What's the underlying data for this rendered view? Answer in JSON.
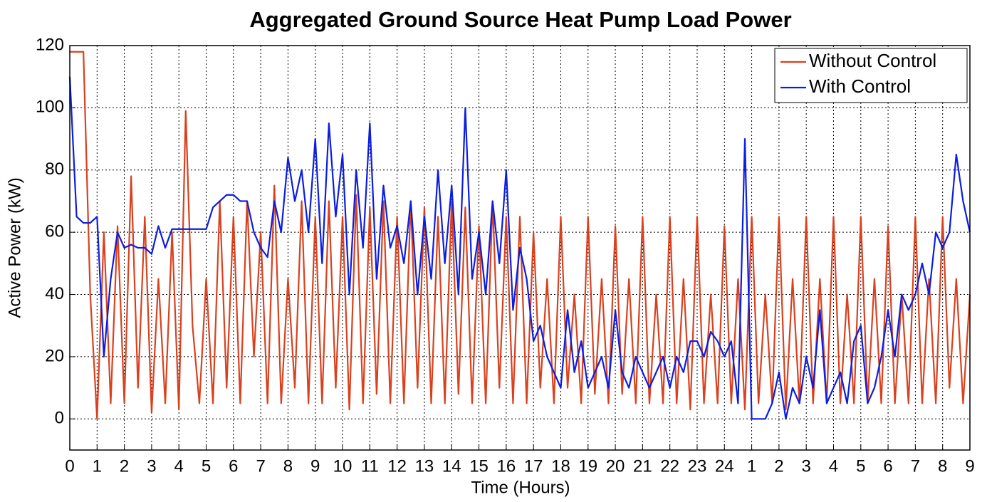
{
  "chart_data": {
    "type": "line",
    "title": "Aggregated Ground Source Heat Pump Load Power",
    "xlabel": "Time (Hours)",
    "ylabel": "Active Power (kW)",
    "xlim": [
      0,
      33
    ],
    "ylim": [
      -10,
      120
    ],
    "xticks": [
      0,
      1,
      2,
      3,
      4,
      5,
      6,
      7,
      8,
      9,
      10,
      11,
      12,
      13,
      14,
      15,
      16,
      17,
      18,
      19,
      20,
      21,
      22,
      23,
      24,
      {
        "value": 25,
        "label": "1"
      },
      {
        "value": 26,
        "label": "2"
      },
      {
        "value": 27,
        "label": "3"
      },
      {
        "value": 28,
        "label": "4"
      },
      {
        "value": 29,
        "label": "5"
      },
      {
        "value": 30,
        "label": "6"
      },
      {
        "value": 31,
        "label": "7"
      },
      {
        "value": 32,
        "label": "8"
      },
      {
        "value": 33,
        "label": "9"
      }
    ],
    "yticks": [
      0,
      20,
      40,
      60,
      80,
      100,
      120
    ],
    "grid": true,
    "legend": "upper right",
    "x": [
      0,
      0.25,
      0.5,
      0.75,
      1,
      1.25,
      1.5,
      1.75,
      2,
      2.25,
      2.5,
      2.75,
      3,
      3.25,
      3.5,
      3.75,
      4,
      4.25,
      4.5,
      4.75,
      5,
      5.25,
      5.5,
      5.75,
      6,
      6.25,
      6.5,
      6.75,
      7,
      7.25,
      7.5,
      7.75,
      8,
      8.25,
      8.5,
      8.75,
      9,
      9.25,
      9.5,
      9.75,
      10,
      10.25,
      10.5,
      10.75,
      11,
      11.25,
      11.5,
      11.75,
      12,
      12.25,
      12.5,
      12.75,
      13,
      13.25,
      13.5,
      13.75,
      14,
      14.25,
      14.5,
      14.75,
      15,
      15.25,
      15.5,
      15.75,
      16,
      16.25,
      16.5,
      16.75,
      17,
      17.25,
      17.5,
      17.75,
      18,
      18.25,
      18.5,
      18.75,
      19,
      19.25,
      19.5,
      19.75,
      20,
      20.25,
      20.5,
      20.75,
      21,
      21.25,
      21.5,
      21.75,
      22,
      22.25,
      22.5,
      22.75,
      23,
      23.25,
      23.5,
      23.75,
      24,
      24.25,
      24.5,
      24.75,
      25,
      25.25,
      25.5,
      25.75,
      26,
      26.25,
      26.5,
      26.75,
      27,
      27.25,
      27.5,
      27.75,
      28,
      28.25,
      28.5,
      28.75,
      29,
      29.25,
      29.5,
      29.75,
      30,
      30.25,
      30.5,
      30.75,
      31,
      31.25,
      31.5,
      31.75,
      32,
      32.25,
      32.5,
      32.75,
      33
    ],
    "series": [
      {
        "name": "Without Control",
        "color": "#d9411e",
        "values": [
          118,
          118,
          118,
          40,
          0,
          60,
          5,
          62,
          5,
          78,
          10,
          65,
          2,
          45,
          5,
          60,
          3,
          99,
          30,
          5,
          45,
          5,
          70,
          10,
          65,
          5,
          70,
          20,
          60,
          5,
          75,
          5,
          45,
          10,
          70,
          5,
          65,
          5,
          70,
          10,
          65,
          3,
          72,
          5,
          68,
          8,
          70,
          5,
          65,
          5,
          70,
          10,
          68,
          5,
          65,
          5,
          70,
          8,
          68,
          5,
          62,
          5,
          70,
          10,
          65,
          5,
          65,
          5,
          60,
          10,
          45,
          5,
          65,
          10,
          40,
          5,
          65,
          8,
          45,
          5,
          62,
          8,
          45,
          5,
          65,
          5,
          40,
          5,
          65,
          5,
          45,
          3,
          65,
          5,
          40,
          5,
          62,
          5,
          45,
          3,
          65,
          5,
          40,
          5,
          65,
          3,
          45,
          5,
          65,
          5,
          45,
          5,
          65,
          5,
          40,
          5,
          65,
          5,
          45,
          5,
          62,
          5,
          40,
          5,
          65,
          5,
          45,
          5,
          65,
          10,
          45,
          5,
          40
        ]
      },
      {
        "name": "With Control",
        "color": "#0b1de0",
        "values": [
          110,
          65,
          63,
          63,
          65,
          20,
          45,
          60,
          55,
          56,
          55,
          55,
          53,
          62,
          55,
          61,
          61,
          61,
          61,
          61,
          61,
          68,
          70,
          72,
          72,
          70,
          70,
          60,
          55,
          52,
          70,
          60,
          84,
          70,
          80,
          60,
          90,
          50,
          95,
          65,
          85,
          40,
          80,
          55,
          95,
          45,
          75,
          55,
          62,
          50,
          70,
          40,
          65,
          45,
          80,
          50,
          75,
          40,
          100,
          45,
          60,
          40,
          70,
          50,
          80,
          35,
          55,
          45,
          25,
          30,
          20,
          15,
          10,
          35,
          15,
          25,
          10,
          15,
          20,
          10,
          35,
          15,
          10,
          20,
          15,
          10,
          15,
          20,
          10,
          20,
          15,
          25,
          25,
          20,
          28,
          25,
          20,
          25,
          5,
          90,
          0,
          0,
          0,
          5,
          15,
          0,
          10,
          5,
          20,
          10,
          35,
          5,
          10,
          15,
          5,
          25,
          30,
          5,
          10,
          20,
          35,
          20,
          40,
          35,
          40,
          50,
          40,
          60,
          55,
          60,
          85,
          70,
          60
        ]
      }
    ]
  }
}
